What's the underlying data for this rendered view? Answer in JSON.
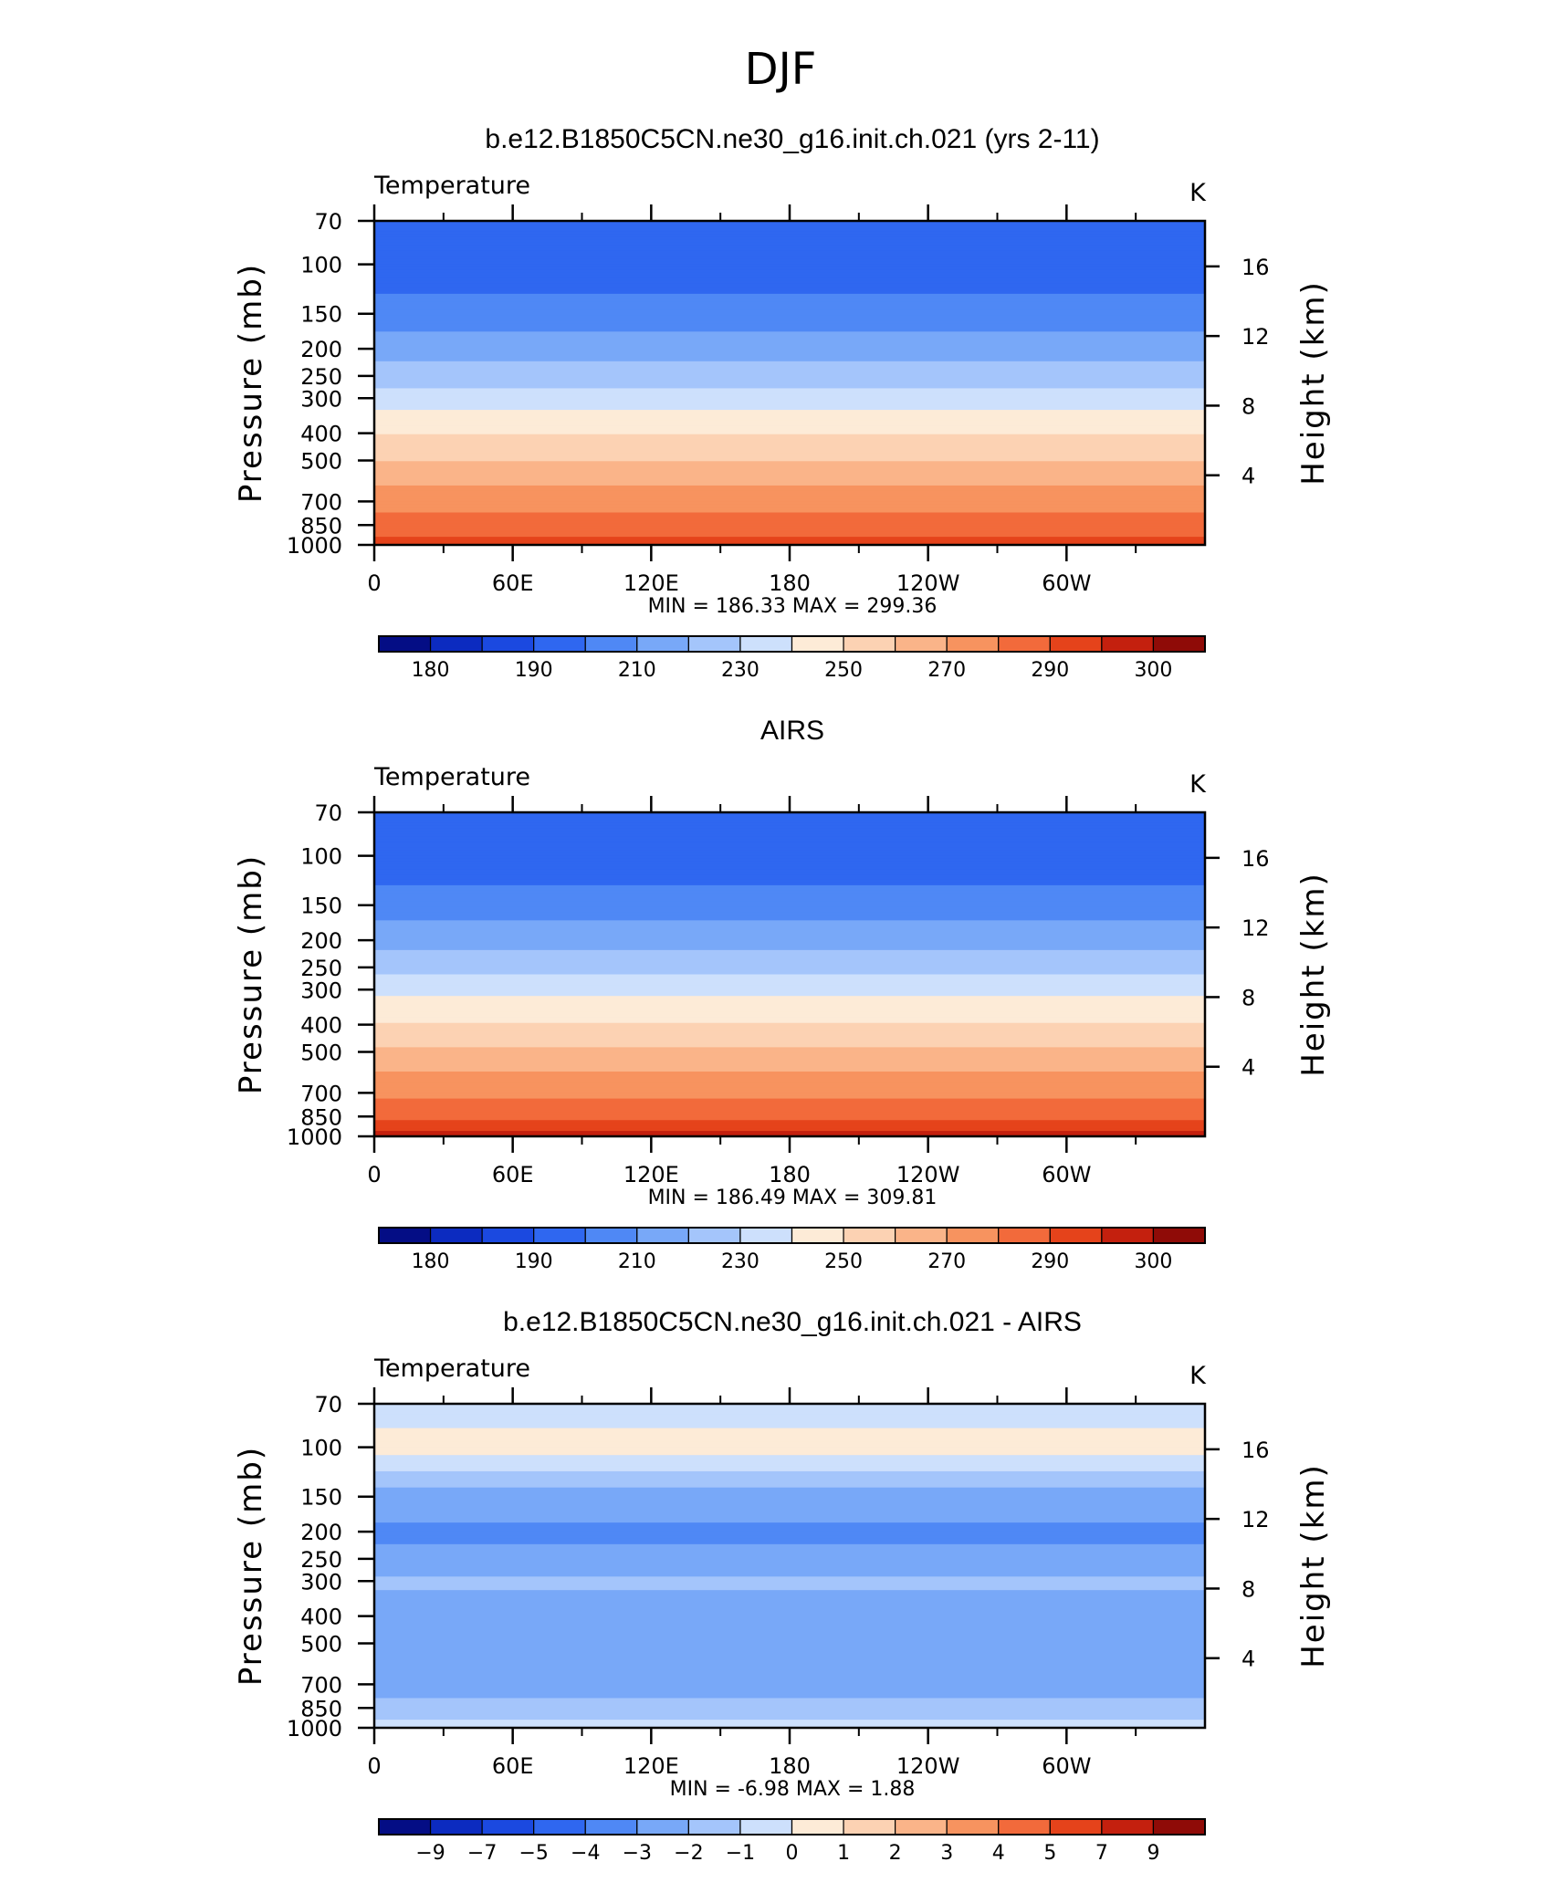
{
  "figure_title": "DJF",
  "colorbar_colors": [
    "#040d85",
    "#0c2bc0",
    "#1b49e0",
    "#2f67f0",
    "#4f88f5",
    "#78a8f8",
    "#a4c5fb",
    "#cde0fc",
    "#fdebd7",
    "#fcd2b3",
    "#fab489",
    "#f7935f",
    "#f26a3b",
    "#e5431b",
    "#c4200e",
    "#8f0b07"
  ],
  "chart_data": [
    {
      "type": "heatmap",
      "title": "b.e12.B1850C5CN.ne30_g16.init.ch.021 (yrs 2-11)",
      "variable": "Temperature",
      "units": "K",
      "ylabel": "Pressure (mb)",
      "y2label": "Height (km)",
      "x_ticks": [
        "0",
        "60E",
        "120E",
        "180",
        "120W",
        "60W"
      ],
      "pressure_ticks": [
        "70",
        "100",
        "150",
        "200",
        "250",
        "300",
        "400",
        "500",
        "700",
        "850",
        "1000"
      ],
      "height_ticks": [
        "16",
        "12",
        "8",
        "4"
      ],
      "stats": {
        "min_label": "MIN =",
        "min": "186.33",
        "max_label": "MAX =",
        "max": "299.36"
      },
      "colorbar_labels": [
        "180",
        "190",
        "210",
        "230",
        "250",
        "270",
        "290",
        "300"
      ],
      "colorbar_levels": [
        175,
        180,
        185,
        190,
        200,
        210,
        220,
        230,
        240,
        250,
        260,
        270,
        280,
        290,
        295,
        300
      ],
      "profile": [
        {
          "pressure": 70,
          "value": 195
        },
        {
          "pressure": 100,
          "value": 192
        },
        {
          "pressure": 150,
          "value": 205
        },
        {
          "pressure": 200,
          "value": 215
        },
        {
          "pressure": 250,
          "value": 225
        },
        {
          "pressure": 300,
          "value": 235
        },
        {
          "pressure": 400,
          "value": 250
        },
        {
          "pressure": 500,
          "value": 260
        },
        {
          "pressure": 700,
          "value": 276
        },
        {
          "pressure": 850,
          "value": 285
        },
        {
          "pressure": 1000,
          "value": 293
        }
      ]
    },
    {
      "type": "heatmap",
      "title": "AIRS",
      "variable": "Temperature",
      "units": "K",
      "ylabel": "Pressure (mb)",
      "y2label": "Height (km)",
      "x_ticks": [
        "0",
        "60E",
        "120E",
        "180",
        "120W",
        "60W"
      ],
      "pressure_ticks": [
        "70",
        "100",
        "150",
        "200",
        "250",
        "300",
        "400",
        "500",
        "700",
        "850",
        "1000"
      ],
      "height_ticks": [
        "16",
        "12",
        "8",
        "4"
      ],
      "stats": {
        "min_label": "MIN =",
        "min": "186.49",
        "max_label": "MAX =",
        "max": "309.81"
      },
      "colorbar_labels": [
        "180",
        "190",
        "210",
        "230",
        "250",
        "270",
        "290",
        "300"
      ],
      "colorbar_levels": [
        175,
        180,
        185,
        190,
        200,
        210,
        220,
        230,
        240,
        250,
        260,
        270,
        280,
        290,
        295,
        300
      ],
      "profile": [
        {
          "pressure": 70,
          "value": 196
        },
        {
          "pressure": 100,
          "value": 192
        },
        {
          "pressure": 150,
          "value": 206
        },
        {
          "pressure": 200,
          "value": 216
        },
        {
          "pressure": 250,
          "value": 226
        },
        {
          "pressure": 300,
          "value": 237
        },
        {
          "pressure": 400,
          "value": 251
        },
        {
          "pressure": 500,
          "value": 262
        },
        {
          "pressure": 700,
          "value": 278
        },
        {
          "pressure": 850,
          "value": 288
        },
        {
          "pressure": 1000,
          "value": 297
        }
      ]
    },
    {
      "type": "heatmap",
      "title": "b.e12.B1850C5CN.ne30_g16.init.ch.021 - AIRS",
      "variable": "Temperature",
      "units": "K",
      "ylabel": "Pressure (mb)",
      "y2label": "Height (km)",
      "x_ticks": [
        "0",
        "60E",
        "120E",
        "180",
        "120W",
        "60W"
      ],
      "pressure_ticks": [
        "70",
        "100",
        "150",
        "200",
        "250",
        "300",
        "400",
        "500",
        "700",
        "850",
        "1000"
      ],
      "height_ticks": [
        "16",
        "12",
        "8",
        "4"
      ],
      "stats": {
        "min_label": "MIN =",
        "min": "-6.98",
        "max_label": "MAX =",
        "max": "1.88"
      },
      "colorbar_labels": [
        "−9",
        "−7",
        "−5",
        "−4",
        "−3",
        "−2",
        "−1",
        "0",
        "1",
        "2",
        "3",
        "4",
        "5",
        "7",
        "9"
      ],
      "colorbar_levels": [
        -10,
        -9,
        -7,
        -5,
        -4,
        -3,
        -2,
        -1,
        0,
        1,
        2,
        3,
        4,
        5,
        7,
        9
      ],
      "profile": [
        {
          "pressure": 70,
          "value": -0.5
        },
        {
          "pressure": 100,
          "value": 0.4
        },
        {
          "pressure": 150,
          "value": -2.5
        },
        {
          "pressure": 200,
          "value": -3.2
        },
        {
          "pressure": 250,
          "value": -2.8
        },
        {
          "pressure": 300,
          "value": -1.8
        },
        {
          "pressure": 400,
          "value": -2.5
        },
        {
          "pressure": 500,
          "value": -2.6
        },
        {
          "pressure": 700,
          "value": -2.7
        },
        {
          "pressure": 850,
          "value": -1.5
        },
        {
          "pressure": 1000,
          "value": -0.6
        }
      ]
    }
  ]
}
